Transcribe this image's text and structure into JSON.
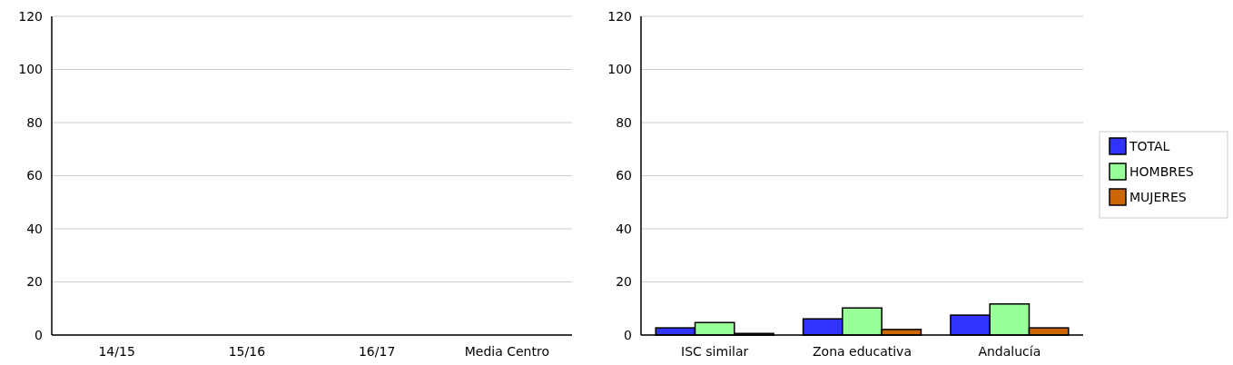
{
  "chart_data": [
    {
      "type": "bar",
      "categories": [
        "14/15",
        "15/16",
        "16/17",
        "Media Centro"
      ],
      "values": [
        null,
        null,
        null,
        null
      ],
      "ylim": [
        0,
        120
      ],
      "yticks": [
        0,
        20,
        40,
        60,
        80,
        100,
        120
      ],
      "grid": "y",
      "legend": false
    },
    {
      "type": "bar",
      "categories": [
        "ISC similar",
        "Zona educativa",
        "Andalucía"
      ],
      "series": [
        {
          "name": "TOTAL",
          "color": "#3333ff",
          "values": [
            2.7,
            6.1,
            7.5
          ]
        },
        {
          "name": "HOMBRES",
          "color": "#99ff99",
          "values": [
            4.7,
            10.2,
            11.7
          ]
        },
        {
          "name": "MUJERES",
          "color": "#cc6600",
          "values": [
            0.6,
            2.1,
            2.7
          ]
        }
      ],
      "ylim": [
        0,
        120
      ],
      "yticks": [
        0,
        20,
        40,
        60,
        80,
        100,
        120
      ],
      "grid": "y",
      "legend": "right"
    }
  ]
}
